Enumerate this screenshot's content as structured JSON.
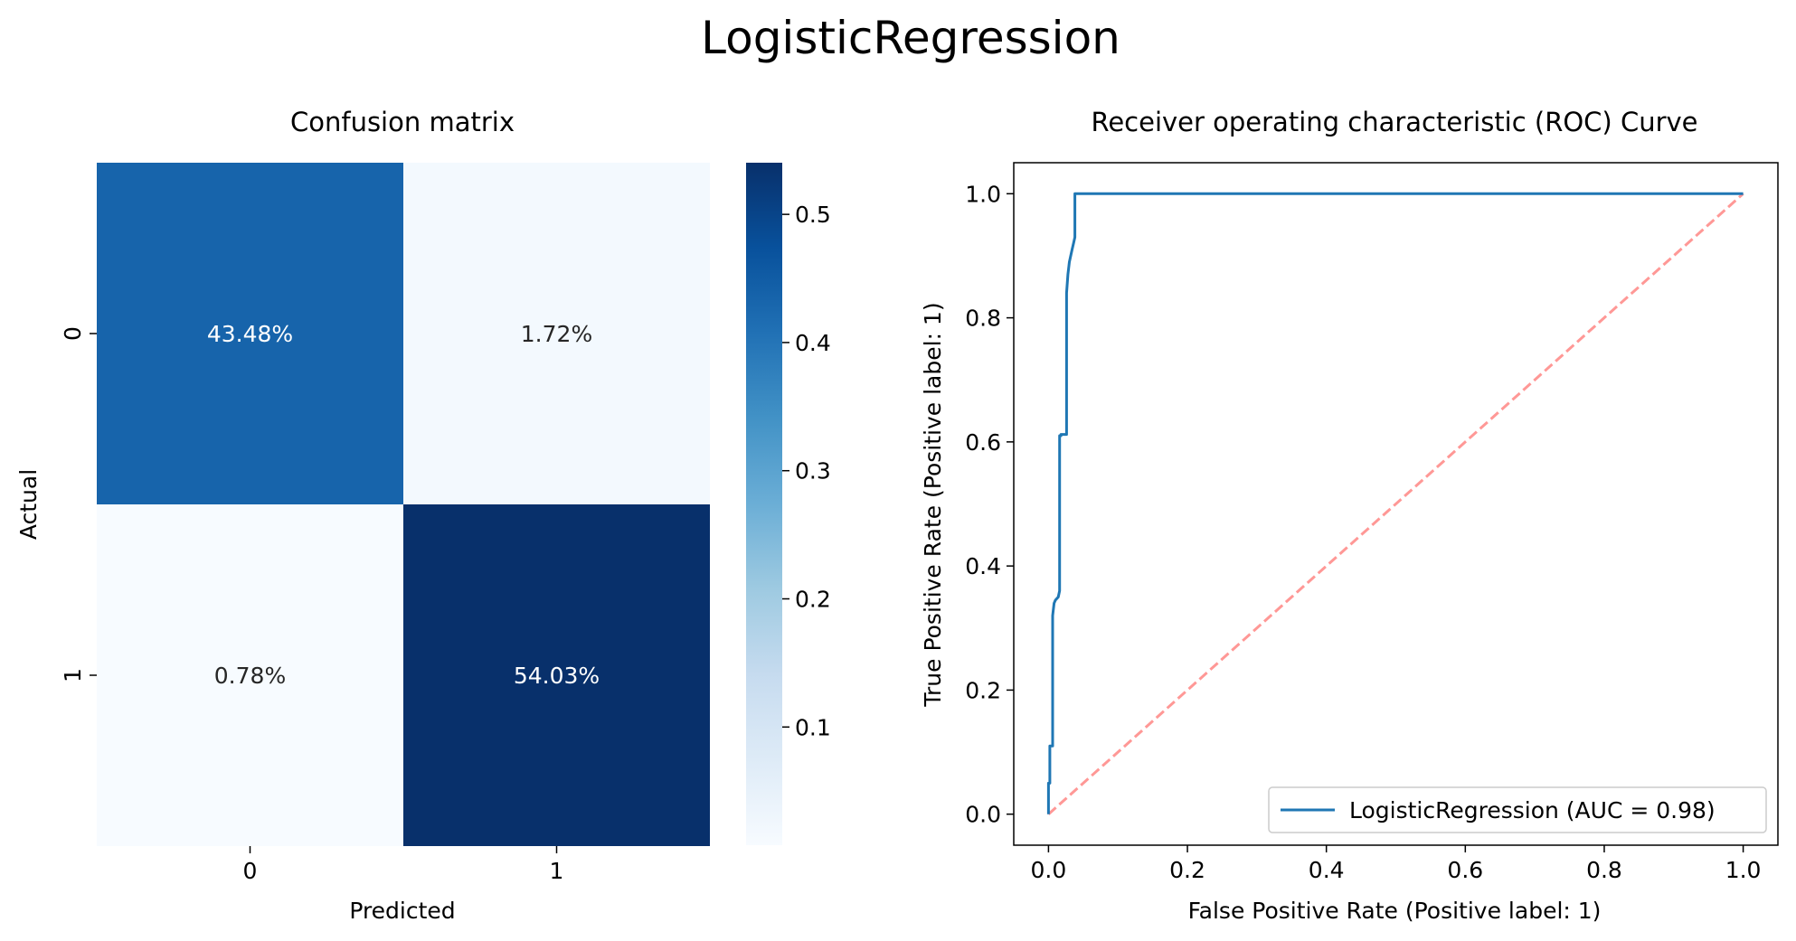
{
  "figure": {
    "suptitle": "LogisticRegression"
  },
  "chart_data": [
    {
      "type": "heatmap",
      "title": "Confusion matrix",
      "xlabel": "Predicted",
      "ylabel": "Actual",
      "x_categories": [
        "0",
        "1"
      ],
      "y_categories": [
        "0",
        "1"
      ],
      "values": [
        [
          0.4348,
          0.0172
        ],
        [
          0.0078,
          0.5403
        ]
      ],
      "annotations": [
        [
          "43.48%",
          "1.72%"
        ],
        [
          "0.78%",
          "54.03%"
        ]
      ],
      "colormap": "Blues",
      "colorbar": {
        "vmin": 0.0078,
        "vmax": 0.5403,
        "ticks": [
          0.1,
          0.2,
          0.3,
          0.4,
          0.5
        ],
        "tick_labels": [
          "0.1",
          "0.2",
          "0.3",
          "0.4",
          "0.5"
        ]
      },
      "grid": false
    },
    {
      "type": "line",
      "title": "Receiver operating characteristic (ROC) Curve",
      "xlabel": "False Positive Rate (Positive label: 1)",
      "ylabel": "True Positive Rate (Positive label: 1)",
      "xlim": [
        -0.05,
        1.05
      ],
      "ylim": [
        -0.05,
        1.05
      ],
      "xticks": [
        0.0,
        0.2,
        0.4,
        0.6,
        0.8,
        1.0
      ],
      "xtick_labels": [
        "0.0",
        "0.2",
        "0.4",
        "0.6",
        "0.8",
        "1.0"
      ],
      "yticks": [
        0.0,
        0.2,
        0.4,
        0.6,
        0.8,
        1.0
      ],
      "ytick_labels": [
        "0.0",
        "0.2",
        "0.4",
        "0.6",
        "0.8",
        "1.0"
      ],
      "grid": false,
      "legend_position": "lower-right",
      "series": [
        {
          "name": "LogisticRegression (AUC = 0.98)",
          "color": "#1f77b4",
          "style": "solid",
          "x": [
            0.0,
            0.0,
            0.002,
            0.002,
            0.006,
            0.006,
            0.008,
            0.01,
            0.014,
            0.016,
            0.016,
            0.018,
            0.018,
            0.026,
            0.026,
            0.028,
            0.03,
            0.034,
            0.036,
            0.038,
            0.038,
            0.042,
            1.0
          ],
          "y": [
            0.0,
            0.05,
            0.05,
            0.11,
            0.11,
            0.32,
            0.34,
            0.345,
            0.35,
            0.36,
            0.61,
            0.61,
            0.612,
            0.612,
            0.84,
            0.87,
            0.89,
            0.91,
            0.92,
            0.93,
            1.0,
            1.0,
            1.0
          ]
        },
        {
          "name": "",
          "color": "#ff9896",
          "style": "dashed",
          "x": [
            0.0,
            1.0
          ],
          "y": [
            0.0,
            1.0
          ]
        }
      ]
    }
  ]
}
